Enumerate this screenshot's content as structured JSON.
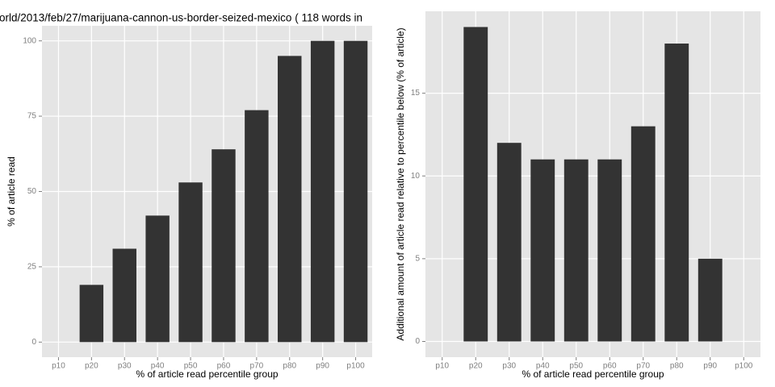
{
  "chart_data": [
    {
      "type": "bar",
      "title": "orld/2013/feb/27/marijuana-cannon-us-border-seized-mexico ( 118 words in",
      "x_label": "% of article read percentile group",
      "y_label": "% of article read",
      "categories": [
        "p10",
        "p20",
        "p30",
        "p40",
        "p50",
        "p60",
        "p70",
        "p80",
        "p90",
        "p100"
      ],
      "values": [
        0,
        19,
        31,
        42,
        53,
        64,
        77,
        95,
        100,
        100
      ],
      "color": "#333333",
      "ylim": [
        -5,
        105
      ],
      "yticks": [
        0,
        25,
        50,
        75,
        100
      ],
      "grid": true
    },
    {
      "type": "bar",
      "x_label": "% of article read percentile group",
      "y_label": "Additional amount of article read relative to percentile below (% of article)",
      "categories": [
        "p10",
        "p20",
        "p30",
        "p40",
        "p50",
        "p60",
        "p70",
        "p80",
        "p90",
        "p100"
      ],
      "values": [
        0,
        19,
        12,
        11,
        11,
        11,
        13,
        18,
        5,
        0
      ],
      "color": "#333333",
      "ylim": [
        -0.95,
        19.95
      ],
      "yticks": [
        0,
        5,
        10,
        15
      ],
      "grid": true
    }
  ]
}
